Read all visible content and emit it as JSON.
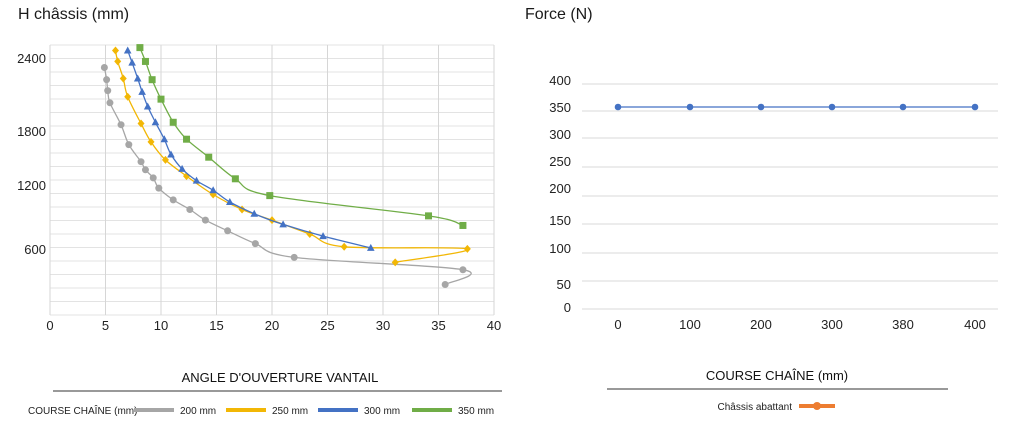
{
  "chart_data": [
    {
      "type": "line",
      "title": "H châssis (mm)",
      "xlabel": "ANGLE D'OUVERTURE VANTAIL",
      "ylabel": "H châssis (mm)",
      "xlim": [
        0,
        40
      ],
      "x_ticks": [
        "0",
        "5",
        "10",
        "15",
        "20",
        "25",
        "30",
        "35",
        "40"
      ],
      "y_ticks": [
        "600",
        "1200",
        "1800",
        "2400"
      ],
      "grid": true,
      "legend_prefix": "COURSE CHAÎNE (mm)",
      "legend_position": "bottom",
      "series": [
        {
          "name": "200 mm",
          "color": "#a6a6a6",
          "marker": "circle",
          "points": [
            [
              4.9,
              2330
            ],
            [
              5.1,
              2230
            ],
            [
              5.2,
              2140
            ],
            [
              5.4,
              2040
            ],
            [
              6.4,
              1860
            ],
            [
              7.1,
              1660
            ],
            [
              8.2,
              1470
            ],
            [
              8.6,
              1380
            ],
            [
              9.3,
              1290
            ],
            [
              9.8,
              1180
            ],
            [
              11.1,
              1070
            ],
            [
              12.6,
              980
            ],
            [
              14.0,
              880
            ],
            [
              16.0,
              780
            ],
            [
              18.5,
              660
            ],
            [
              22.0,
              540
            ],
            [
              37.2,
              440
            ],
            [
              35.6,
              320
            ]
          ]
        },
        {
          "name": "250 mm",
          "color": "#f2b705",
          "marker": "diamond",
          "points": [
            [
              5.9,
              2490
            ],
            [
              6.1,
              2380
            ],
            [
              6.6,
              2240
            ],
            [
              7.0,
              2090
            ],
            [
              8.2,
              1870
            ],
            [
              9.1,
              1690
            ],
            [
              10.4,
              1490
            ],
            [
              12.3,
              1310
            ],
            [
              14.7,
              1120
            ],
            [
              17.3,
              980
            ],
            [
              20.0,
              880
            ],
            [
              23.4,
              750
            ],
            [
              26.5,
              630
            ],
            [
              37.6,
              610
            ],
            [
              31.1,
              500
            ]
          ]
        },
        {
          "name": "300 mm",
          "color": "#4472c4",
          "marker": "triangle",
          "points": [
            [
              7.0,
              2490
            ],
            [
              7.4,
              2370
            ],
            [
              7.9,
              2240
            ],
            [
              8.3,
              2130
            ],
            [
              8.8,
              2010
            ],
            [
              9.5,
              1880
            ],
            [
              10.3,
              1720
            ],
            [
              10.9,
              1550
            ],
            [
              11.9,
              1390
            ],
            [
              13.2,
              1260
            ],
            [
              14.7,
              1160
            ],
            [
              16.2,
              1050
            ],
            [
              18.4,
              940
            ],
            [
              21.0,
              840
            ],
            [
              24.6,
              730
            ],
            [
              28.9,
              620
            ]
          ]
        },
        {
          "name": "350 mm",
          "color": "#70ad47",
          "marker": "square",
          "points": [
            [
              8.1,
              2520
            ],
            [
              8.6,
              2380
            ],
            [
              9.2,
              2230
            ],
            [
              10.0,
              2070
            ],
            [
              11.1,
              1880
            ],
            [
              12.3,
              1720
            ],
            [
              14.3,
              1520
            ],
            [
              16.7,
              1280
            ],
            [
              19.8,
              1110
            ],
            [
              34.1,
              920
            ],
            [
              37.2,
              830
            ]
          ]
        }
      ]
    },
    {
      "type": "line",
      "title": "Force (N)",
      "xlabel": "COURSE CHAÎNE (mm)",
      "ylabel": "Force (N)",
      "categories": [
        "0",
        "100",
        "200",
        "300",
        "380",
        "400"
      ],
      "y_ticks": [
        "0",
        "50",
        "100",
        "150",
        "200",
        "250",
        "300",
        "350",
        "400"
      ],
      "grid": true,
      "legend_position": "bottom",
      "series": [
        {
          "name": "Châssis abattant",
          "color": "#4472c4",
          "legend_color": "#ed7d31",
          "values": [
            350,
            350,
            350,
            350,
            350,
            350
          ]
        }
      ]
    }
  ]
}
